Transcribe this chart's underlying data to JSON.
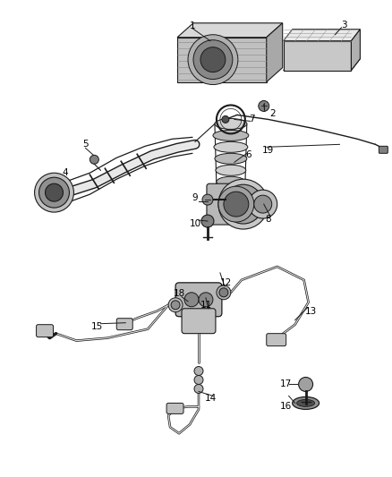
{
  "bg_color": "#ffffff",
  "line_color": "#1a1a1a",
  "gray_dark": "#404040",
  "gray_mid": "#888888",
  "gray_light": "#cccccc",
  "figsize": [
    4.38,
    5.33
  ],
  "dpi": 100
}
